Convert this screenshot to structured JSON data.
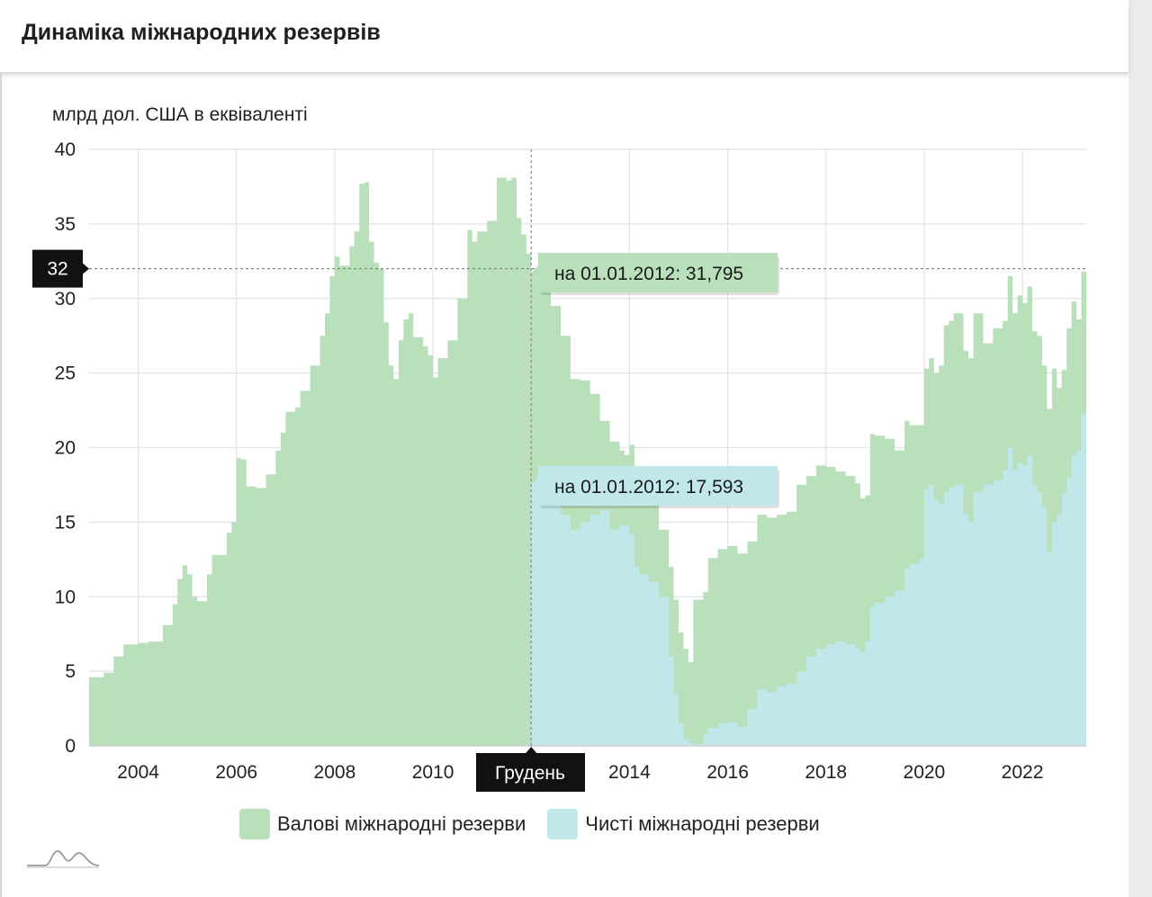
{
  "header": {
    "title": "Динаміка міжнародних резервів"
  },
  "colors": {
    "gross": "#b9e0bb",
    "net": "#c0e8ea",
    "grid": "#e2e2e2",
    "crosshair": "#888888"
  },
  "chart_data": {
    "type": "area",
    "ylabel": "млрд дол. США в еквіваленті",
    "ylim": [
      0,
      40
    ],
    "yticks": [
      0,
      5,
      10,
      15,
      20,
      25,
      30,
      35,
      40
    ],
    "xlim": [
      2003.0,
      2023.3
    ],
    "xticks": [
      {
        "value": 2004,
        "label": "2004"
      },
      {
        "value": 2006,
        "label": "2006"
      },
      {
        "value": 2008,
        "label": "2008"
      },
      {
        "value": 2010,
        "label": "2010"
      },
      {
        "value": 2014,
        "label": "2014"
      },
      {
        "value": 2016,
        "label": "2016"
      },
      {
        "value": 2018,
        "label": "2018"
      },
      {
        "value": 2020,
        "label": "2020"
      },
      {
        "value": 2022,
        "label": "2022"
      }
    ],
    "grid": true,
    "legend_position": "bottom",
    "series": [
      {
        "name": "Валові міжнародні резерви",
        "points": [
          [
            2003.0,
            4.6
          ],
          [
            2003.3,
            4.9
          ],
          [
            2003.5,
            6.0
          ],
          [
            2003.7,
            6.8
          ],
          [
            2004.0,
            6.9
          ],
          [
            2004.2,
            7.0
          ],
          [
            2004.5,
            8.1
          ],
          [
            2004.7,
            9.5
          ],
          [
            2004.8,
            11.2
          ],
          [
            2004.9,
            12.1
          ],
          [
            2005.0,
            11.5
          ],
          [
            2005.1,
            10.0
          ],
          [
            2005.2,
            9.7
          ],
          [
            2005.4,
            11.5
          ],
          [
            2005.5,
            12.8
          ],
          [
            2005.8,
            14.3
          ],
          [
            2005.9,
            15.0
          ],
          [
            2006.0,
            19.3
          ],
          [
            2006.1,
            19.2
          ],
          [
            2006.2,
            17.4
          ],
          [
            2006.4,
            17.3
          ],
          [
            2006.6,
            18.2
          ],
          [
            2006.8,
            19.8
          ],
          [
            2006.9,
            21.0
          ],
          [
            2007.0,
            22.4
          ],
          [
            2007.2,
            22.7
          ],
          [
            2007.3,
            23.8
          ],
          [
            2007.5,
            25.5
          ],
          [
            2007.7,
            27.5
          ],
          [
            2007.8,
            29.0
          ],
          [
            2007.9,
            31.5
          ],
          [
            2008.0,
            32.8
          ],
          [
            2008.1,
            32.2
          ],
          [
            2008.3,
            33.5
          ],
          [
            2008.4,
            34.5
          ],
          [
            2008.5,
            37.7
          ],
          [
            2008.6,
            37.8
          ],
          [
            2008.7,
            33.8
          ],
          [
            2008.8,
            32.4
          ],
          [
            2008.9,
            32.0
          ],
          [
            2009.0,
            28.4
          ],
          [
            2009.1,
            25.5
          ],
          [
            2009.2,
            24.6
          ],
          [
            2009.3,
            27.2
          ],
          [
            2009.4,
            28.6
          ],
          [
            2009.5,
            29.0
          ],
          [
            2009.6,
            27.4
          ],
          [
            2009.8,
            26.8
          ],
          [
            2009.9,
            26.2
          ],
          [
            2010.0,
            24.7
          ],
          [
            2010.1,
            26.0
          ],
          [
            2010.3,
            27.2
          ],
          [
            2010.5,
            30.0
          ],
          [
            2010.7,
            34.6
          ],
          [
            2010.8,
            33.8
          ],
          [
            2010.9,
            34.5
          ],
          [
            2011.1,
            35.2
          ],
          [
            2011.3,
            38.1
          ],
          [
            2011.5,
            37.9
          ],
          [
            2011.6,
            38.1
          ],
          [
            2011.7,
            35.4
          ],
          [
            2011.8,
            34.3
          ],
          [
            2011.9,
            33.0
          ],
          [
            2012.0,
            31.8
          ],
          [
            2012.2,
            30.8
          ],
          [
            2012.4,
            29.5
          ],
          [
            2012.6,
            27.5
          ],
          [
            2012.8,
            24.6
          ],
          [
            2013.0,
            24.5
          ],
          [
            2013.2,
            23.6
          ],
          [
            2013.4,
            21.8
          ],
          [
            2013.6,
            20.4
          ],
          [
            2013.8,
            19.8
          ],
          [
            2013.9,
            19.5
          ],
          [
            2014.0,
            20.2
          ],
          [
            2014.1,
            17.5
          ],
          [
            2014.2,
            16.5
          ],
          [
            2014.4,
            17.0
          ],
          [
            2014.6,
            14.5
          ],
          [
            2014.8,
            12.0
          ],
          [
            2014.9,
            9.8
          ],
          [
            2015.0,
            7.6
          ],
          [
            2015.1,
            6.5
          ],
          [
            2015.2,
            5.6
          ],
          [
            2015.3,
            9.8
          ],
          [
            2015.5,
            10.3
          ],
          [
            2015.6,
            12.6
          ],
          [
            2015.8,
            13.2
          ],
          [
            2016.0,
            13.4
          ],
          [
            2016.2,
            12.9
          ],
          [
            2016.4,
            13.7
          ],
          [
            2016.6,
            15.5
          ],
          [
            2016.8,
            15.3
          ],
          [
            2017.0,
            15.5
          ],
          [
            2017.2,
            15.7
          ],
          [
            2017.4,
            17.5
          ],
          [
            2017.6,
            18.1
          ],
          [
            2017.8,
            18.8
          ],
          [
            2018.0,
            18.7
          ],
          [
            2018.2,
            18.4
          ],
          [
            2018.4,
            18.1
          ],
          [
            2018.6,
            17.6
          ],
          [
            2018.7,
            16.6
          ],
          [
            2018.8,
            16.8
          ],
          [
            2018.9,
            20.9
          ],
          [
            2019.0,
            20.8
          ],
          [
            2019.2,
            20.6
          ],
          [
            2019.4,
            19.8
          ],
          [
            2019.6,
            21.8
          ],
          [
            2019.7,
            21.5
          ],
          [
            2019.9,
            21.5
          ],
          [
            2020.0,
            25.3
          ],
          [
            2020.1,
            26.0
          ],
          [
            2020.2,
            25.0
          ],
          [
            2020.3,
            25.5
          ],
          [
            2020.4,
            28.2
          ],
          [
            2020.5,
            28.5
          ],
          [
            2020.6,
            29.0
          ],
          [
            2020.8,
            26.5
          ],
          [
            2020.9,
            26.0
          ],
          [
            2021.0,
            29.0
          ],
          [
            2021.2,
            27.0
          ],
          [
            2021.4,
            28.0
          ],
          [
            2021.6,
            28.5
          ],
          [
            2021.7,
            31.5
          ],
          [
            2021.8,
            29.0
          ],
          [
            2021.9,
            30.2
          ],
          [
            2022.0,
            29.7
          ],
          [
            2022.1,
            30.8
          ],
          [
            2022.2,
            27.8
          ],
          [
            2022.3,
            27.5
          ],
          [
            2022.4,
            25.5
          ],
          [
            2022.5,
            22.6
          ],
          [
            2022.6,
            25.3
          ],
          [
            2022.7,
            24.0
          ],
          [
            2022.8,
            25.2
          ],
          [
            2022.9,
            28.0
          ],
          [
            2023.0,
            29.8
          ],
          [
            2023.1,
            28.6
          ],
          [
            2023.2,
            31.8
          ]
        ]
      },
      {
        "name": "Чисті міжнародні резерви",
        "points": [
          [
            2012.0,
            17.6
          ],
          [
            2012.2,
            17.0
          ],
          [
            2012.4,
            16.5
          ],
          [
            2012.6,
            15.5
          ],
          [
            2012.8,
            14.5
          ],
          [
            2013.0,
            15.0
          ],
          [
            2013.2,
            15.5
          ],
          [
            2013.4,
            15.8
          ],
          [
            2013.6,
            14.5
          ],
          [
            2013.8,
            14.8
          ],
          [
            2014.0,
            14.2
          ],
          [
            2014.1,
            12.0
          ],
          [
            2014.2,
            11.5
          ],
          [
            2014.4,
            11.0
          ],
          [
            2014.6,
            10.0
          ],
          [
            2014.8,
            6.0
          ],
          [
            2014.9,
            3.5
          ],
          [
            2015.0,
            1.5
          ],
          [
            2015.1,
            0.5
          ],
          [
            2015.2,
            0.2
          ],
          [
            2015.3,
            0.1
          ],
          [
            2015.5,
            0.8
          ],
          [
            2015.6,
            1.2
          ],
          [
            2015.8,
            1.5
          ],
          [
            2016.0,
            1.6
          ],
          [
            2016.2,
            1.3
          ],
          [
            2016.4,
            2.5
          ],
          [
            2016.6,
            3.8
          ],
          [
            2016.8,
            3.6
          ],
          [
            2017.0,
            4.0
          ],
          [
            2017.2,
            4.2
          ],
          [
            2017.4,
            5.0
          ],
          [
            2017.6,
            6.0
          ],
          [
            2017.8,
            6.5
          ],
          [
            2018.0,
            6.8
          ],
          [
            2018.2,
            7.0
          ],
          [
            2018.4,
            6.8
          ],
          [
            2018.6,
            6.5
          ],
          [
            2018.7,
            6.3
          ],
          [
            2018.8,
            7.0
          ],
          [
            2018.9,
            9.3
          ],
          [
            2019.0,
            9.6
          ],
          [
            2019.2,
            10.0
          ],
          [
            2019.4,
            10.4
          ],
          [
            2019.6,
            11.9
          ],
          [
            2019.7,
            12.2
          ],
          [
            2019.9,
            12.6
          ],
          [
            2020.0,
            17.2
          ],
          [
            2020.1,
            17.5
          ],
          [
            2020.2,
            16.5
          ],
          [
            2020.3,
            16.2
          ],
          [
            2020.4,
            17.0
          ],
          [
            2020.5,
            17.3
          ],
          [
            2020.6,
            17.5
          ],
          [
            2020.8,
            15.5
          ],
          [
            2020.9,
            15.0
          ],
          [
            2021.0,
            17.0
          ],
          [
            2021.2,
            17.5
          ],
          [
            2021.4,
            17.8
          ],
          [
            2021.6,
            18.5
          ],
          [
            2021.7,
            20.0
          ],
          [
            2021.8,
            18.5
          ],
          [
            2021.9,
            19.0
          ],
          [
            2022.0,
            18.8
          ],
          [
            2022.1,
            19.5
          ],
          [
            2022.2,
            17.5
          ],
          [
            2022.3,
            17.0
          ],
          [
            2022.4,
            16.0
          ],
          [
            2022.5,
            13.0
          ],
          [
            2022.6,
            15.0
          ],
          [
            2022.7,
            15.5
          ],
          [
            2022.8,
            17.0
          ],
          [
            2022.9,
            18.0
          ],
          [
            2023.0,
            19.5
          ],
          [
            2023.1,
            19.8
          ],
          [
            2023.2,
            22.3
          ]
        ]
      }
    ],
    "crosshair": {
      "x": 2012.0,
      "x_label": "Грудень",
      "y": 32,
      "y_label": "32"
    },
    "tooltips": [
      {
        "series": "Валові міжнародні резерви",
        "value": 31.795,
        "text": "на 01.01.2012: 31,795"
      },
      {
        "series": "Чисті міжнародні резерви",
        "value": 17.593,
        "text": "на 01.01.2012: 17,593"
      }
    ]
  }
}
